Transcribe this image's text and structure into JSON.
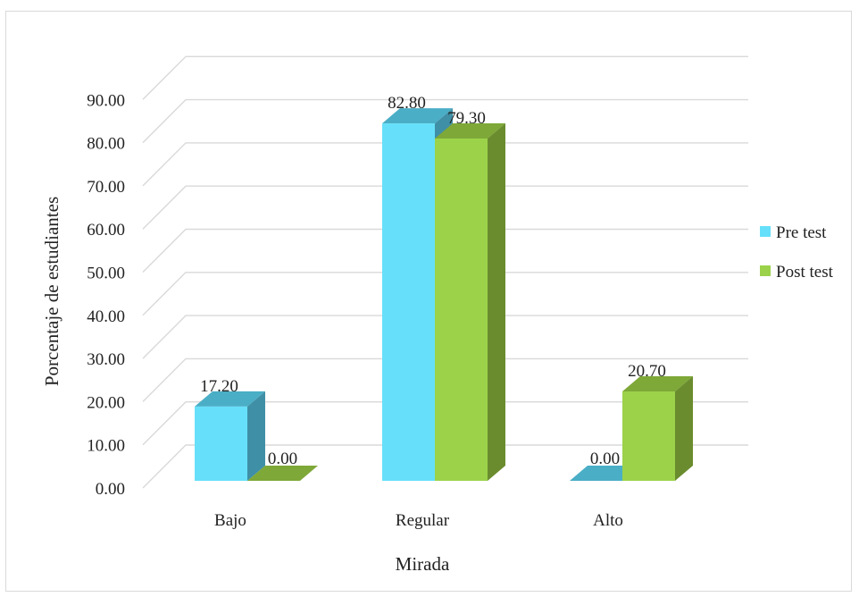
{
  "chart_data": {
    "type": "bar",
    "categories": [
      "Bajo",
      "Regular",
      "Alto"
    ],
    "series": [
      {
        "name": "Pre test",
        "values": [
          17.2,
          82.8,
          0.0
        ],
        "labels": [
          "17.20",
          "82.80",
          "0.00"
        ],
        "color": "#66e0fa",
        "side_color": "#3f8fa6",
        "top_color": "#4aaec6"
      },
      {
        "name": "Post test",
        "values": [
          0.0,
          79.3,
          20.7
        ],
        "labels": [
          "0.00",
          "79.30",
          "20.70"
        ],
        "color": "#9bd24a",
        "side_color": "#6a8c2e",
        "top_color": "#7ea838"
      }
    ],
    "ylim": [
      0,
      90
    ],
    "yticks": [
      "0.00",
      "10.00",
      "20.00",
      "30.00",
      "40.00",
      "50.00",
      "60.00",
      "70.00",
      "80.00",
      "90.00"
    ],
    "xlabel": "Mirada",
    "ylabel": "Porcentaje de estudiantes",
    "legend_position": "right",
    "grid": true,
    "style": "3d-clustered-column"
  }
}
